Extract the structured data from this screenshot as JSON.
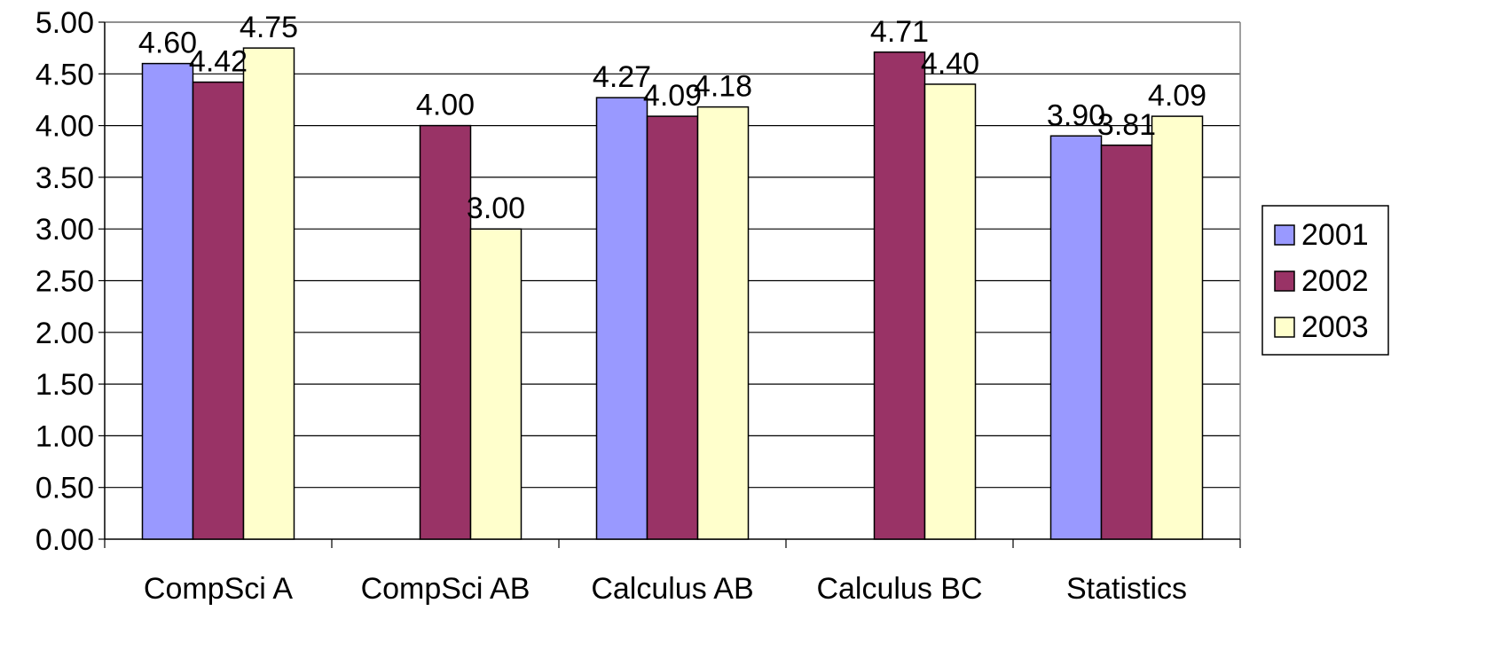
{
  "chart_data": {
    "type": "bar",
    "categories": [
      "CompSci A",
      "CompSci AB",
      "Calculus AB",
      "Calculus BC",
      "Statistics"
    ],
    "series": [
      {
        "name": "2001",
        "color": "#9999FF",
        "values": [
          4.6,
          null,
          4.27,
          null,
          3.9
        ],
        "labels": [
          "4.60",
          null,
          "4.27",
          null,
          "3.90"
        ]
      },
      {
        "name": "2002",
        "color": "#993366",
        "values": [
          4.42,
          4.0,
          4.09,
          4.71,
          3.81
        ],
        "labels": [
          "4.42",
          "4.00",
          "4.09",
          "4.71",
          "3.81"
        ]
      },
      {
        "name": "2003",
        "color": "#FFFFCC",
        "values": [
          4.75,
          3.0,
          4.18,
          4.4,
          4.09
        ],
        "labels": [
          "4.75",
          "3.00",
          "4.18",
          "4.40",
          "4.09"
        ]
      }
    ],
    "y_ticks": [
      "0.00",
      "0.50",
      "1.00",
      "1.50",
      "2.00",
      "2.50",
      "3.00",
      "3.50",
      "4.00",
      "4.50",
      "5.00"
    ],
    "ylim": [
      0,
      5
    ],
    "grid": true,
    "legend_position": "right"
  }
}
